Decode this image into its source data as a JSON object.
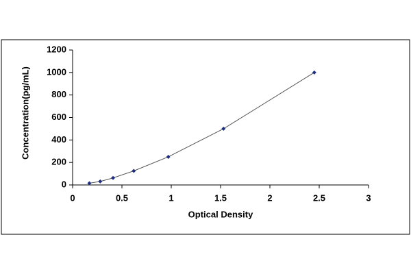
{
  "chart_data": {
    "type": "scatter",
    "x_label": "Optical Density",
    "y_label": "Concentration(pg/mL)",
    "series": [
      {
        "color": "#1f2f7f",
        "line_color": "#555555",
        "x": [
          0.17,
          0.28,
          0.41,
          0.62,
          0.97,
          1.53,
          2.45
        ],
        "values": [
          15.6,
          31.2,
          62.5,
          125,
          250,
          500,
          1000
        ]
      }
    ],
    "xlim": [
      0,
      3
    ],
    "xticks": [
      0,
      0.5,
      1,
      1.5,
      2,
      2.5,
      3
    ],
    "ylim": [
      0,
      1200
    ],
    "yticks": [
      0,
      200,
      400,
      600,
      800,
      1000,
      1200
    ],
    "grid": false
  }
}
